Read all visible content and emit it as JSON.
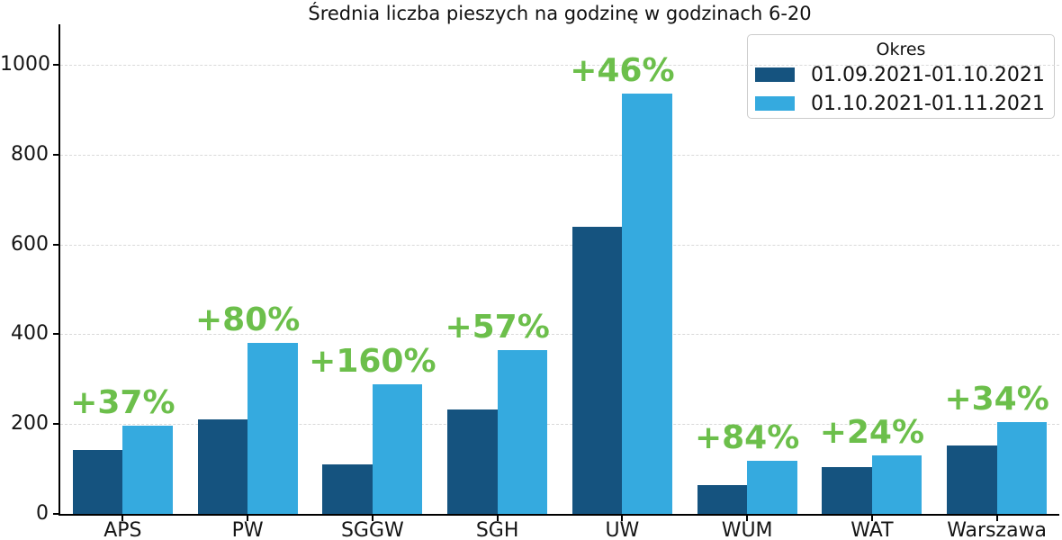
{
  "chart_data": {
    "type": "bar",
    "title": "Średnia liczba pieszych na godzinę w godzinach 6-20",
    "categories": [
      "APS",
      "PW",
      "SGGW",
      "SGH",
      "UW",
      "WUM",
      "WAT",
      "Warszawa"
    ],
    "series": [
      {
        "name": "01.09.2021-01.10.2021",
        "color": "#15537f",
        "values": [
          143,
          211,
          111,
          232,
          640,
          64,
          105,
          153
        ]
      },
      {
        "name": "01.10.2021-01.11.2021",
        "color": "#35aadf",
        "values": [
          196,
          380,
          289,
          364,
          935,
          118,
          130,
          205
        ]
      }
    ],
    "annotations": {
      "color": "#6cbf4b",
      "labels": [
        "+37%",
        "+80%",
        "+160%",
        "+57%",
        "+46%",
        "+84%",
        "+24%",
        "+34%"
      ]
    },
    "yticks": [
      0,
      200,
      400,
      600,
      800,
      1000
    ],
    "ylim": [
      0,
      1090
    ],
    "xlabel": "",
    "ylabel": "",
    "grid": "horizontal-dashed",
    "legend_position": "top-right"
  },
  "legend": {
    "title": "Okres"
  }
}
